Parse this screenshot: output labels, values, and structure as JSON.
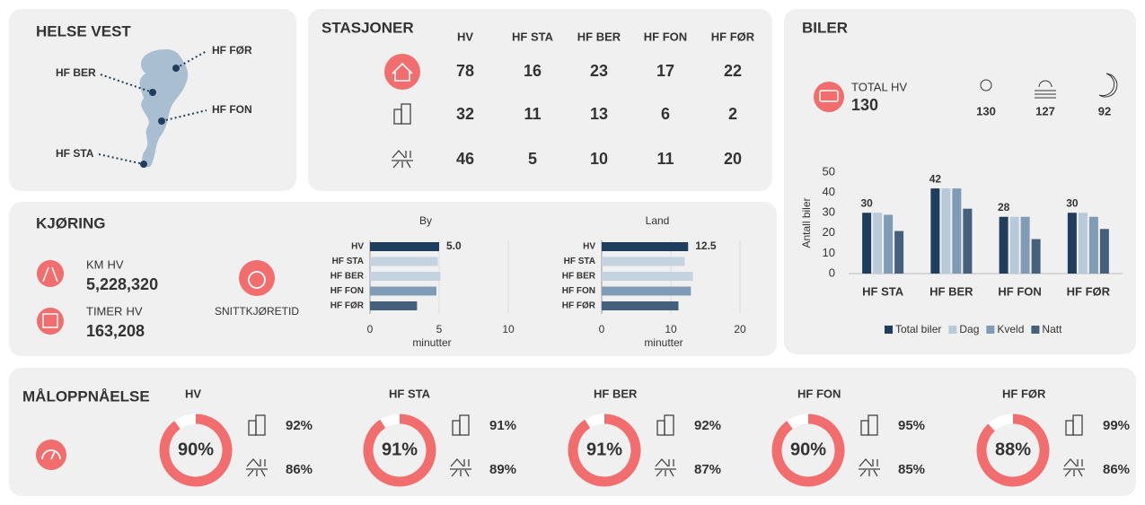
{
  "map": {
    "title": "HELSE VEST",
    "labels": [
      "HF FØR",
      "HF BER",
      "HF FON",
      "HF STA"
    ]
  },
  "stations": {
    "title": "STASJONER",
    "columns": [
      "HV",
      "HF STA",
      "HF BER",
      "HF FON",
      "HF FØR"
    ],
    "rows": [
      [
        78,
        16,
        23,
        17,
        22
      ],
      [
        32,
        11,
        13,
        6,
        2
      ],
      [
        46,
        5,
        10,
        11,
        20
      ]
    ]
  },
  "cars": {
    "title": "BILER",
    "total_label": "TOTAL",
    "total_suffix": "HV",
    "total": 130,
    "day": 130,
    "evening": 127,
    "night": 92,
    "chart": {
      "type": "bar",
      "ylabel": "Antall biler",
      "categories": [
        "HF STA",
        "HF BER",
        "HF FON",
        "HF FØR"
      ],
      "series": [
        {
          "name": "Total biler",
          "color": "#1f3d5c",
          "values": [
            30,
            42,
            28,
            30
          ]
        },
        {
          "name": "Dag",
          "color": "#b8c9d9",
          "values": [
            30,
            42,
            28,
            30
          ]
        },
        {
          "name": "Kveld",
          "color": "#7f9bb5",
          "values": [
            29,
            42,
            28,
            28
          ]
        },
        {
          "name": "Natt",
          "color": "#44607d",
          "values": [
            21,
            32,
            17,
            22
          ]
        }
      ],
      "ylim": [
        0,
        50
      ],
      "yticks": [
        0,
        10,
        20,
        30,
        40,
        50
      ]
    }
  },
  "driving": {
    "title": "KJØRING",
    "km_label": "KM",
    "km_suffix": "HV",
    "km": "5,228,320",
    "hours_label": "TIMER",
    "hours_suffix": "HV",
    "hours": "163,208",
    "avg_label": "SNITTKJØRETID",
    "charts": [
      {
        "type": "barh",
        "title": "By",
        "categories": [
          "HV",
          "HF STA",
          "HF BER",
          "HF FON",
          "HF FØR"
        ],
        "values": [
          5.0,
          4.9,
          5.1,
          4.8,
          3.4
        ],
        "hv_label": "5.0",
        "colors": [
          "#1f3d5c",
          "#c5d3e0",
          "#c5d3e0",
          "#7f9bb5",
          "#44607d"
        ],
        "xlim": [
          0,
          10
        ],
        "xticks": [
          0,
          5,
          10
        ],
        "xlabel": "minutter"
      },
      {
        "type": "barh",
        "title": "Land",
        "categories": [
          "HV",
          "HF STA",
          "HF BER",
          "HF FON",
          "HF FØR"
        ],
        "values": [
          12.5,
          12.0,
          13.2,
          12.9,
          11.1
        ],
        "hv_label": "12.5",
        "colors": [
          "#1f3d5c",
          "#c5d3e0",
          "#c5d3e0",
          "#7f9bb5",
          "#44607d"
        ],
        "xlim": [
          0,
          20
        ],
        "xticks": [
          0,
          10,
          20
        ],
        "xlabel": "minutter"
      }
    ]
  },
  "goals": {
    "title": "MÅLOPPNÅELSE",
    "items": [
      {
        "name": "HV",
        "total": 90,
        "total_label": "90%",
        "city": "92%",
        "rural": "86%"
      },
      {
        "name": "HF STA",
        "total": 91,
        "total_label": "91%",
        "city": "91%",
        "rural": "89%"
      },
      {
        "name": "HF BER",
        "total": 91,
        "total_label": "91%",
        "city": "92%",
        "rural": "87%"
      },
      {
        "name": "HF FON",
        "total": 90,
        "total_label": "90%",
        "city": "95%",
        "rural": "85%"
      },
      {
        "name": "HF FØR",
        "total": 88,
        "total_label": "88%",
        "city": "99%",
        "rural": "86%"
      }
    ]
  }
}
